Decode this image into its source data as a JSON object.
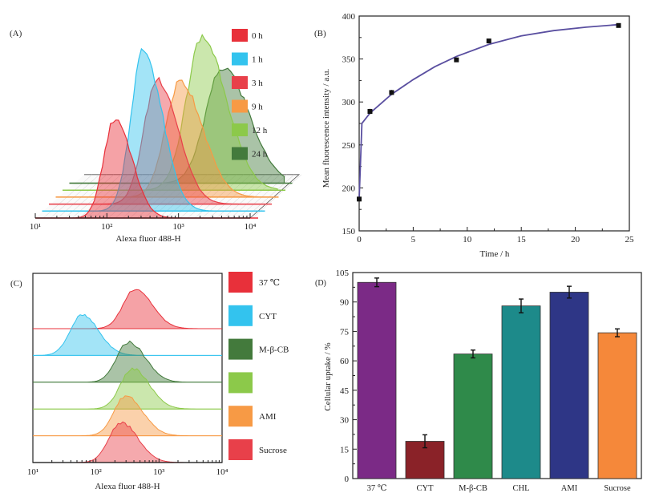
{
  "chart_data": [
    {
      "panel": "A",
      "type": "area",
      "title": "(A)",
      "xlabel": "Alexa fluor 488-H",
      "xscale": "log",
      "xlim": [
        10,
        10000
      ],
      "xticks": [
        "10¹",
        "10²",
        "10³",
        "10⁴"
      ],
      "layout": "3d-stacked histograms",
      "legend_position": "top-right",
      "series": [
        {
          "name": "0 h",
          "color": "#e8303a",
          "peak": 130,
          "height": 0.62
        },
        {
          "name": "1 h",
          "color": "#33c3ee",
          "peak": 260,
          "height": 1.0
        },
        {
          "name": "3 h",
          "color": "#e8404a",
          "peak": 330,
          "height": 0.78
        },
        {
          "name": "9 h",
          "color": "#f79a45",
          "peak": 550,
          "height": 0.72
        },
        {
          "name": "12 h",
          "color": "#8cc94a",
          "peak": 900,
          "height": 0.95
        },
        {
          "name": "24 h",
          "color": "#437a3c",
          "peak": 1400,
          "height": 0.72
        }
      ]
    },
    {
      "panel": "B",
      "type": "scatter",
      "title": "(B)",
      "xlabel": "Time / h",
      "ylabel": "Mean fluorescence intensity / a.u.",
      "xlim": [
        0,
        25
      ],
      "ylim": [
        150,
        400
      ],
      "xticks": [
        0,
        5,
        10,
        15,
        20,
        25
      ],
      "yticks": [
        150,
        200,
        250,
        300,
        350,
        400
      ],
      "points": [
        {
          "x": 0,
          "y": 187,
          "err": 2
        },
        {
          "x": 1,
          "y": 289,
          "err": 3
        },
        {
          "x": 3,
          "y": 311,
          "err": 3
        },
        {
          "x": 9,
          "y": 349,
          "err": 2
        },
        {
          "x": 12,
          "y": 371,
          "err": 2
        },
        {
          "x": 24,
          "y": 389,
          "err": 2
        }
      ],
      "fit_curve": {
        "color": "#5a4fa0",
        "points": [
          [
            0,
            187
          ],
          [
            0.25,
            275
          ],
          [
            1,
            287
          ],
          [
            2,
            298
          ],
          [
            3,
            309
          ],
          [
            5,
            326
          ],
          [
            7,
            341
          ],
          [
            9,
            353
          ],
          [
            12,
            367
          ],
          [
            15,
            377
          ],
          [
            18,
            383
          ],
          [
            21,
            387
          ],
          [
            24,
            390
          ]
        ]
      }
    },
    {
      "panel": "C",
      "type": "area",
      "title": "(C)",
      "xlabel": "Alexa fluor 488-H",
      "xscale": "log",
      "xlim": [
        10,
        10000
      ],
      "xticks": [
        "10¹",
        "10²",
        "10³",
        "10⁴"
      ],
      "layout": "offset stacked histograms",
      "legend_position": "right",
      "series": [
        {
          "name": "37 ℃",
          "color": "#e8303a",
          "peak": 420
        },
        {
          "name": "CYT",
          "color": "#33c3ee",
          "peak": 60
        },
        {
          "name": "M-β-CB",
          "color": "#437a3c",
          "peak": 330
        },
        {
          "name": "",
          "color": "#8cc94a",
          "peak": 380
        },
        {
          "name": "AMI",
          "color": "#f79a45",
          "peak": 300
        },
        {
          "name": "Sucrose",
          "color": "#e8404a",
          "peak": 250
        }
      ]
    },
    {
      "panel": "D",
      "type": "bar",
      "title": "(D)",
      "xlabel": "",
      "ylabel": "Cellular uptake / %",
      "ylim": [
        0,
        105
      ],
      "yticks": [
        0,
        15,
        30,
        45,
        60,
        75,
        90,
        105
      ],
      "categories": [
        "37 ℃",
        "CYT",
        "M-β-CB",
        "CHL",
        "AMI",
        "Sucrose"
      ],
      "values": [
        100,
        19,
        63.5,
        88,
        95,
        74.3
      ],
      "errors": [
        2.2,
        3.3,
        2.0,
        3.5,
        3.0,
        2.0
      ],
      "colors": [
        "#7b2a86",
        "#8a2228",
        "#2f8a4a",
        "#1d8a8a",
        "#2e3686",
        "#f5883a"
      ]
    }
  ]
}
